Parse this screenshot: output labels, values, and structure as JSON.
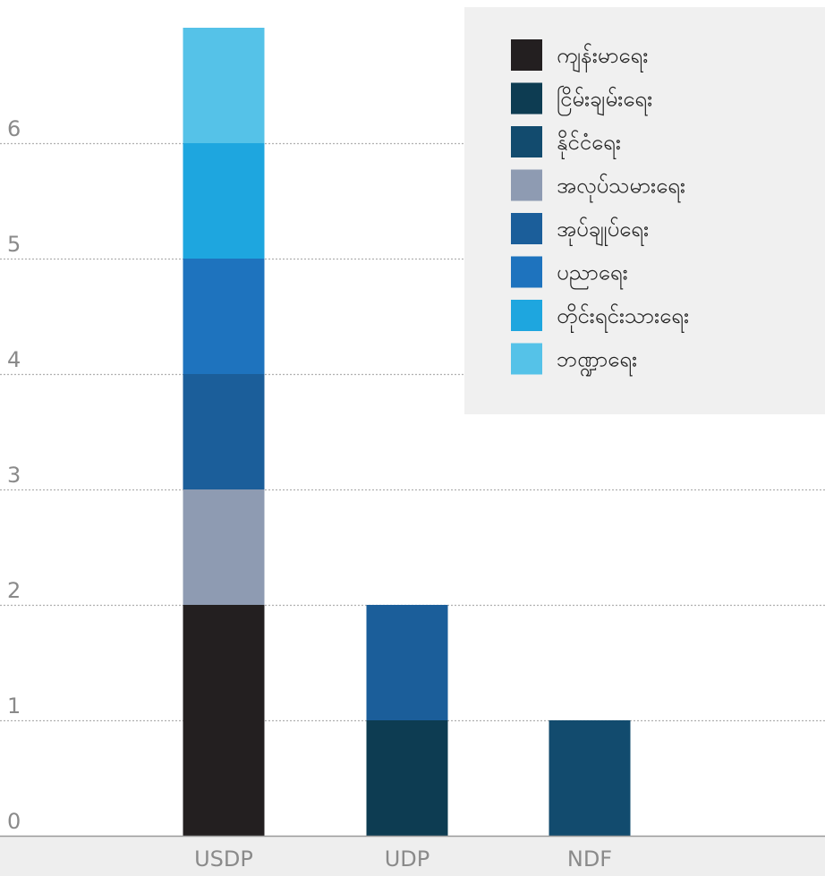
{
  "chart_data": {
    "type": "bar",
    "stacked": true,
    "title": "",
    "xlabel": "",
    "ylabel": "",
    "categories": [
      "USDP",
      "UDP",
      "NDF"
    ],
    "yticks": [
      "0",
      "1",
      "2",
      "3",
      "4",
      "5",
      "6"
    ],
    "ylim": [
      0,
      7
    ],
    "grid": true,
    "legend_position": "top-right",
    "series": [
      {
        "name": "ကျန်းမာရေး",
        "color": "#231f20",
        "values": [
          2,
          0,
          0
        ]
      },
      {
        "name": "ငြိမ်းချမ်းရေး",
        "color": "#0d3c52",
        "values": [
          0,
          1,
          0
        ]
      },
      {
        "name": "နိုင်ငံရေး",
        "color": "#124b6e",
        "values": [
          0,
          0,
          1
        ]
      },
      {
        "name": "အလုပ်သမားရေး",
        "color": "#8e9bb2",
        "values": [
          1,
          0,
          0
        ]
      },
      {
        "name": "အုပ်ချုပ်ရေး",
        "color": "#1b5e9a",
        "values": [
          1,
          1,
          0
        ]
      },
      {
        "name": "ပညာရေး",
        "color": "#1e73be",
        "values": [
          1,
          0,
          0
        ]
      },
      {
        "name": "တိုင်းရင်းသားရေး",
        "color": "#1ea6df",
        "values": [
          1,
          0,
          0
        ]
      },
      {
        "name": "ဘဏ္ဍာရေး",
        "color": "#55c2e8",
        "values": [
          1,
          0,
          0
        ]
      }
    ]
  }
}
